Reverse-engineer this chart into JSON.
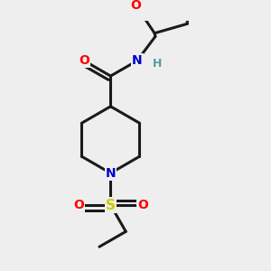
{
  "background_color": "#eeeeee",
  "bond_color": "#1a1a1a",
  "line_width": 2.2,
  "atom_colors": {
    "O": "#ff0000",
    "N": "#0000cc",
    "S": "#cccc00",
    "C": "#1a1a1a",
    "H": "#5a9a9a"
  },
  "font_size_atom": 10,
  "font_size_H": 9,
  "font_size_S": 11
}
